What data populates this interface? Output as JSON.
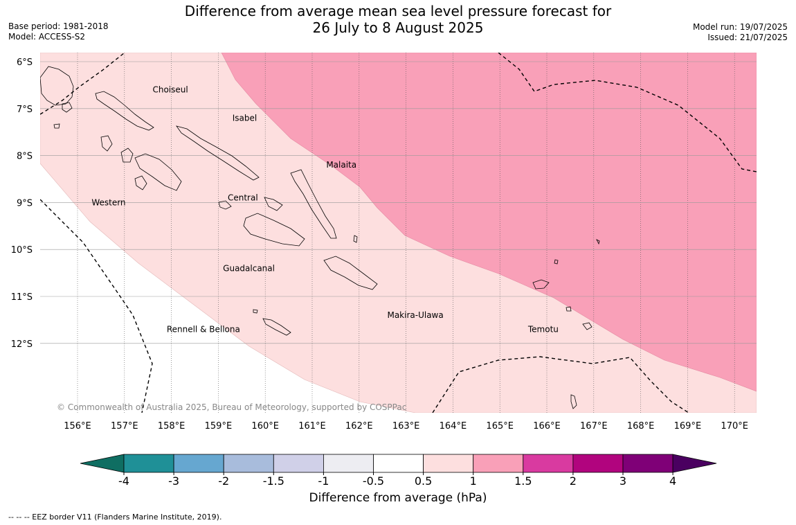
{
  "title_line1": "Difference from average mean sea level pressure forecast for",
  "title_line2": "26 July to 8 August 2025",
  "base_period": "Base period: 1981-2018",
  "model": "Model: ACCESS-S2",
  "model_run": "Model run: 19/07/2025",
  "issued": "Issued: 21/07/2025",
  "copyright": "© Commonwealth of Australia 2025, Bureau of Meteorology, supported by COSPPac",
  "footer": "-- -- -- EEZ border V11 (Flanders Marine Institute, 2019).",
  "lon_labels": [
    "156°E",
    "157°E",
    "158°E",
    "159°E",
    "160°E",
    "161°E",
    "162°E",
    "163°E",
    "164°E",
    "165°E",
    "166°E",
    "167°E",
    "168°E",
    "169°E",
    "170°E"
  ],
  "lat_labels": [
    "6°S",
    "7°S",
    "8°S",
    "9°S",
    "10°S",
    "11°S",
    "12°S"
  ],
  "regions": [
    {
      "name": "Choiseul",
      "lon": 157.6,
      "lat": 6.6
    },
    {
      "name": "Isabel",
      "lon": 159.3,
      "lat": 7.2
    },
    {
      "name": "Malaita",
      "lon": 161.3,
      "lat": 8.2
    },
    {
      "name": "Western",
      "lon": 156.3,
      "lat": 9.0
    },
    {
      "name": "Central",
      "lon": 159.2,
      "lat": 8.9
    },
    {
      "name": "Guadalcanal",
      "lon": 159.1,
      "lat": 10.4
    },
    {
      "name": "Makira-Ulawa",
      "lon": 162.6,
      "lat": 11.4
    },
    {
      "name": "Rennell & Bellona",
      "lon": 157.9,
      "lat": 11.7
    },
    {
      "name": "Temotu",
      "lon": 165.6,
      "lat": 11.7
    }
  ],
  "colorbar": {
    "title": "Difference from average (hPa)",
    "tick_labels": [
      "-4",
      "-3",
      "-2",
      "-1.5",
      "-1",
      "-0.5",
      "0.5",
      "1",
      "1.5",
      "2",
      "3",
      "4"
    ],
    "colors": [
      "#0f6e62",
      "#1f9097",
      "#66a7d0",
      "#a8bcdc",
      "#d0d0e8",
      "#ededf2",
      "#ffffff",
      "#fddfdf",
      "#f9a0b8",
      "#d93aa0",
      "#b1047e",
      "#7f0077",
      "#4a0060"
    ]
  },
  "chart_data": {
    "type": "map",
    "lon_range": [
      155.7,
      170.5
    ],
    "lat_range": [
      -13.5,
      -5.8
    ],
    "units": "hPa",
    "fields": [
      {
        "level": "0.5 to 1",
        "color": "#fddfdf"
      },
      {
        "level": "1 to 1.5",
        "color": "#f9a0b8"
      }
    ]
  }
}
